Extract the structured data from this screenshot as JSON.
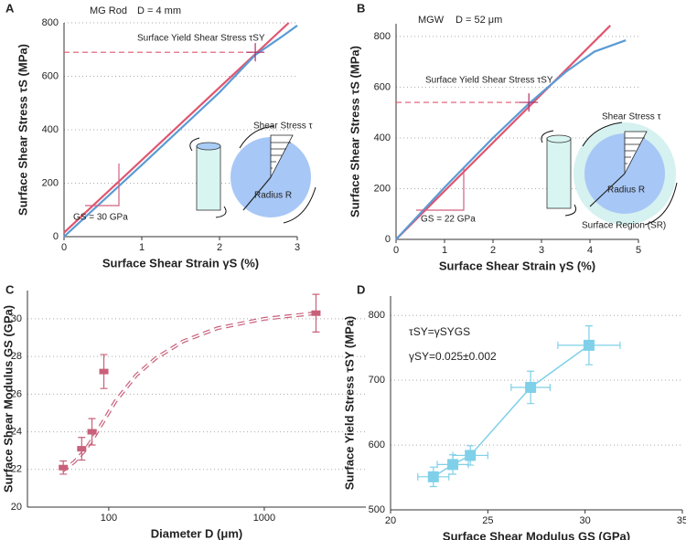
{
  "chart_data": [
    {
      "type": "line",
      "panel": "A",
      "title": "MG Rod",
      "subtitle": "D = 4 mm",
      "x_label": "Surface Shear Strain γS (%)",
      "y_label": "Surface Shear Stress τS (MPa)",
      "xlim": [
        0,
        3
      ],
      "xticks": [
        0,
        1,
        2,
        3
      ],
      "ylim": [
        0,
        800
      ],
      "yticks": [
        0,
        200,
        400,
        600,
        800
      ],
      "grid": true,
      "series": [
        {
          "color": "#e0566f",
          "x": [
            0,
            2.89
          ],
          "values": [
            15,
            800
          ]
        },
        {
          "color": "#5b9bd5",
          "x": [
            0,
            1,
            2,
            2.46,
            2.8,
            3.0
          ],
          "values": [
            0,
            268,
            540,
            680,
            748,
            790
          ]
        }
      ],
      "yield_label": "Surface Yield Shear Stress τSY",
      "yield_point": {
        "x": 2.46,
        "y": 690
      },
      "modulus_label": "GS = 30 GPa",
      "inset_labels": [
        "Shear Stress τ",
        "Radius R"
      ]
    },
    {
      "type": "line",
      "panel": "B",
      "title": "MGW",
      "subtitle": "D = 52 μm",
      "x_label": "Surface Shear Strain γS (%)",
      "y_label": "Surface Shear Stress τS (MPa)",
      "xlim": [
        0,
        5
      ],
      "xticks": [
        0,
        1,
        2,
        3,
        4,
        5
      ],
      "ylim": [
        0,
        850
      ],
      "yticks": [
        0,
        200,
        400,
        600,
        800
      ],
      "grid": true,
      "series": [
        {
          "color": "#e0566f",
          "x": [
            0,
            4.42
          ],
          "values": [
            0,
            843
          ]
        },
        {
          "color": "#5b9bd5",
          "x": [
            0,
            1,
            2,
            2.74,
            3.5,
            4.09,
            4.74
          ],
          "values": [
            0,
            205,
            400,
            535,
            660,
            740,
            785
          ]
        }
      ],
      "yield_label": "Surface Yield Shear Stress τSY",
      "yield_point": {
        "x": 2.74,
        "y": 540
      },
      "modulus_label": "GS = 22 GPa",
      "inset_labels": [
        "Shear Stress τ",
        "Radius R",
        "Surface Region (SR)"
      ]
    },
    {
      "type": "scatter",
      "panel": "C",
      "x_label": "Diameter D (μm)",
      "y_label": "Surface Shear Modulus GS (GPa)",
      "xscale": "log",
      "xlim": [
        30,
        4500
      ],
      "xticks": [
        100,
        1000
      ],
      "ylim": [
        20,
        31.5
      ],
      "yticks": [
        20,
        22,
        24,
        26,
        28,
        30
      ],
      "grid": true,
      "color": "#c8607a",
      "x": [
        51,
        67,
        78,
        93,
        2150
      ],
      "values": [
        22.1,
        23.1,
        24.0,
        27.2,
        30.3
      ],
      "errors": [
        0.35,
        0.6,
        0.7,
        0.9,
        1.0
      ],
      "fit": {
        "x": [
          50,
          60,
          70,
          80,
          90,
          110,
          150,
          200,
          300,
          500,
          1000,
          2150
        ],
        "values": [
          21.9,
          22.4,
          23.0,
          23.7,
          24.4,
          25.6,
          27.0,
          27.9,
          28.8,
          29.5,
          30.0,
          30.3
        ]
      }
    },
    {
      "type": "scatter",
      "panel": "D",
      "x_label": "Surface Shear Modulus GS (GPa)",
      "y_label": "Surface Yield Stress τSY (MPa)",
      "xlim": [
        20,
        35
      ],
      "xticks": [
        20,
        25,
        30,
        35
      ],
      "ylim": [
        500,
        830
      ],
      "yticks": [
        500,
        600,
        700,
        800
      ],
      "grid": true,
      "color": "#7fd0e8",
      "connect": true,
      "x": [
        22.2,
        23.2,
        24.1,
        27.2,
        30.2
      ],
      "values": [
        551,
        570,
        584,
        689,
        754
      ],
      "x_errors": [
        0.8,
        0.8,
        0.9,
        1.0,
        1.6
      ],
      "errors": [
        15,
        15,
        15,
        25,
        30
      ],
      "equation": "τSY=γSYGS",
      "fit_result": "γSY=0.025±0.002"
    }
  ]
}
